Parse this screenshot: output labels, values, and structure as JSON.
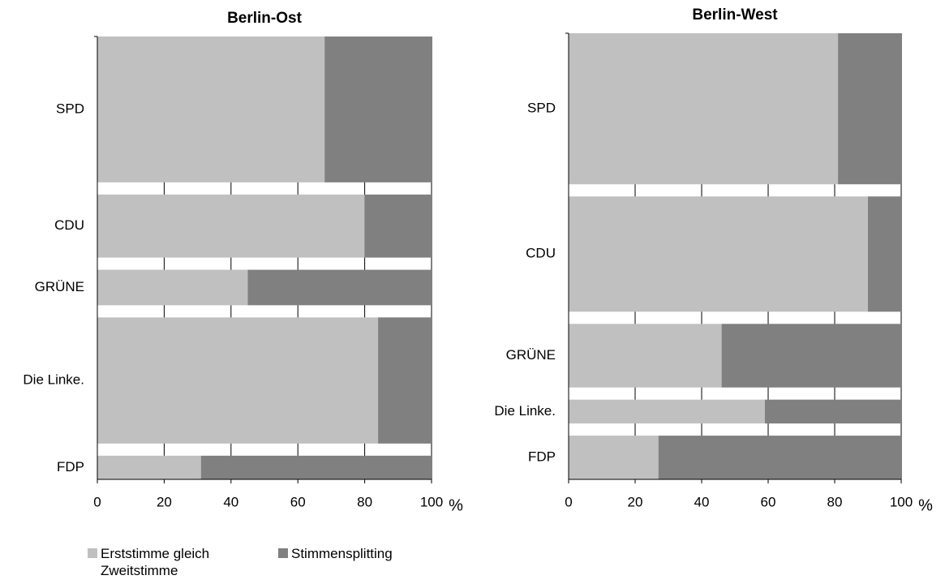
{
  "chart_data": [
    {
      "type": "bar",
      "stacked": true,
      "orientation": "horizontal",
      "title": "Berlin-Ost",
      "unit": "%",
      "categories": [
        "SPD",
        "CDU",
        "GRÜNE",
        "Die Linke.",
        "FDP"
      ],
      "weights": [
        37,
        16,
        9,
        32,
        6
      ],
      "series": [
        {
          "name": "Erststimme gleich Zweitstimme",
          "color": "#c0c0c0",
          "values": [
            68,
            80,
            45,
            84,
            31
          ]
        },
        {
          "name": "Stimmensplitting",
          "color": "#808080",
          "values": [
            32,
            20,
            55,
            16,
            69
          ]
        }
      ],
      "xlim": [
        0,
        100
      ],
      "xticks": [
        0,
        20,
        40,
        60,
        80,
        100
      ],
      "grid": true
    },
    {
      "type": "bar",
      "stacked": true,
      "orientation": "horizontal",
      "title": "Berlin-West",
      "unit": "%",
      "categories": [
        "SPD",
        "CDU",
        "GRÜNE",
        "Die Linke.",
        "FDP"
      ],
      "weights": [
        38,
        29,
        16,
        6,
        11
      ],
      "series": [
        {
          "color": "#c0c0c0",
          "values": [
            81,
            90,
            46,
            59,
            27
          ]
        },
        {
          "color": "#808080",
          "values": [
            19,
            10,
            54,
            41,
            73
          ]
        }
      ],
      "xlim": [
        0,
        100
      ],
      "xticks": [
        0,
        20,
        40,
        60,
        80,
        100
      ],
      "grid": true
    }
  ]
}
